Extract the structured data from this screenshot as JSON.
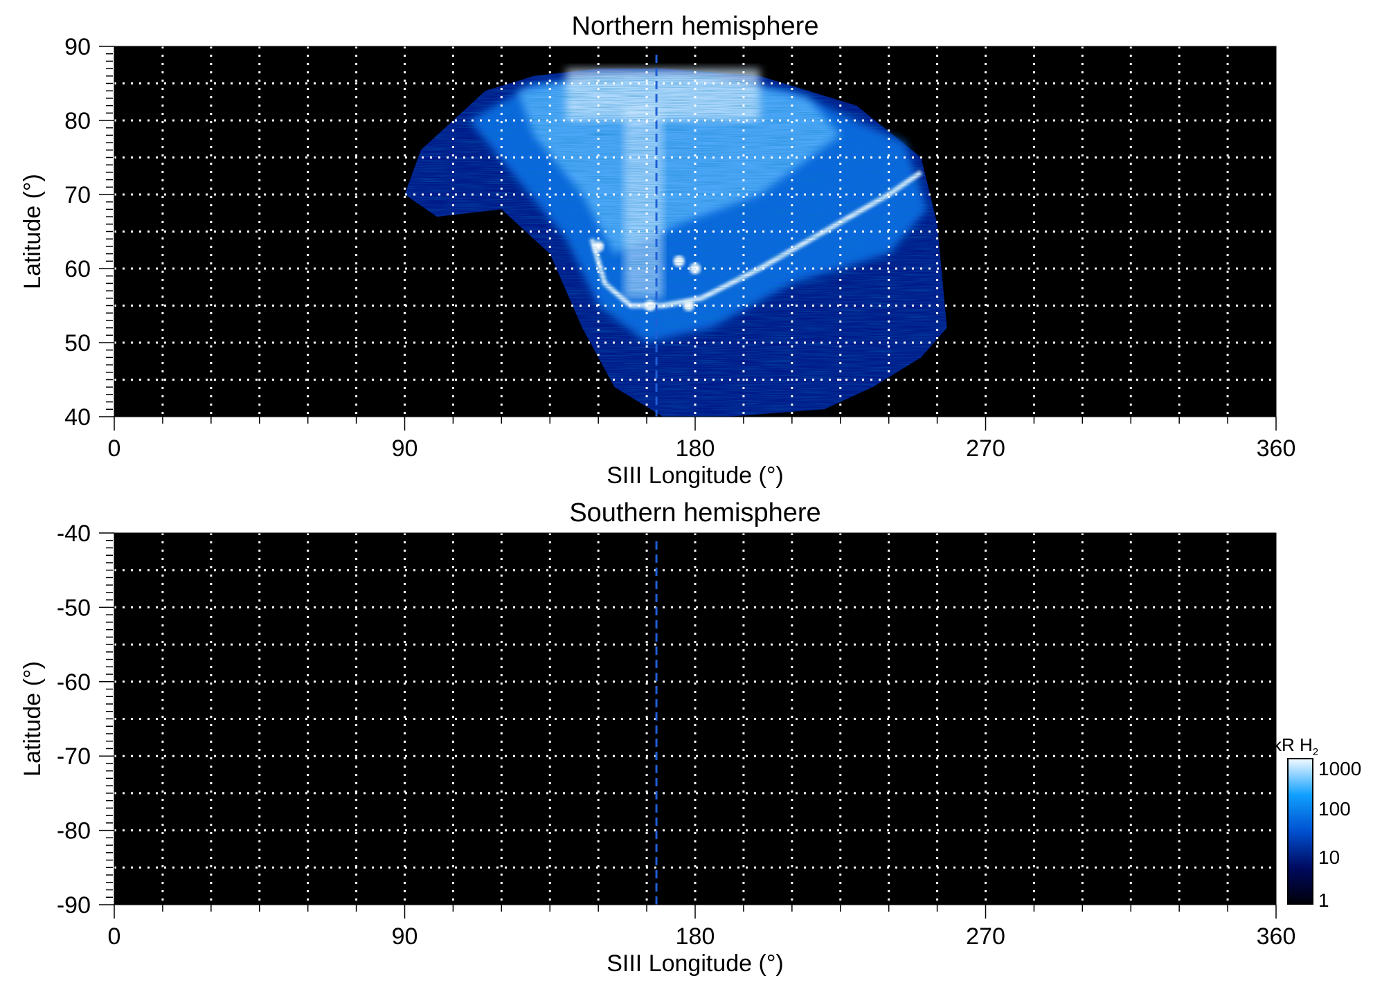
{
  "chart_data": [
    {
      "type": "heatmap",
      "title": "Northern hemisphere",
      "xlabel": "SIII Longitude (°)",
      "ylabel": "Latitude (°)",
      "xlim": [
        0,
        360
      ],
      "ylim": [
        40,
        90
      ],
      "xticks": [
        0,
        90,
        180,
        270,
        360
      ],
      "yticks": [
        40,
        50,
        60,
        70,
        80,
        90
      ],
      "grid": true,
      "grid_x_step": 15,
      "grid_y_step": 5,
      "reference_longitude": 168,
      "reference_line_color": "#1f5fd6",
      "emission_extent": {
        "lon": [
          90,
          255
        ],
        "lat": [
          40,
          87
        ]
      },
      "main_oval": [
        [
          148,
          64
        ],
        [
          152,
          58
        ],
        [
          160,
          55
        ],
        [
          170,
          55
        ],
        [
          182,
          56
        ],
        [
          200,
          60
        ],
        [
          220,
          65
        ],
        [
          240,
          70
        ],
        [
          250,
          73
        ]
      ]
    },
    {
      "type": "heatmap",
      "title": "Southern hemisphere",
      "xlabel": "SIII Longitude (°)",
      "ylabel": "Latitude (°)",
      "xlim": [
        0,
        360
      ],
      "ylim": [
        -90,
        -40
      ],
      "xticks": [
        0,
        90,
        180,
        270,
        360
      ],
      "yticks": [
        -90,
        -80,
        -70,
        -60,
        -50,
        -40
      ],
      "grid": true,
      "grid_x_step": 15,
      "grid_y_step": 5,
      "reference_longitude": 168,
      "reference_line_color": "#1f5fd6"
    }
  ],
  "colorbar": {
    "label": "kR H",
    "label_subscript": "2",
    "scale": "log",
    "range": [
      1,
      1000
    ],
    "ticks": [
      "1000",
      "100",
      "10",
      "1"
    ],
    "colors": [
      "#000008",
      "#000a60",
      "#0050d0",
      "#10a0ff",
      "#f4faff"
    ]
  }
}
